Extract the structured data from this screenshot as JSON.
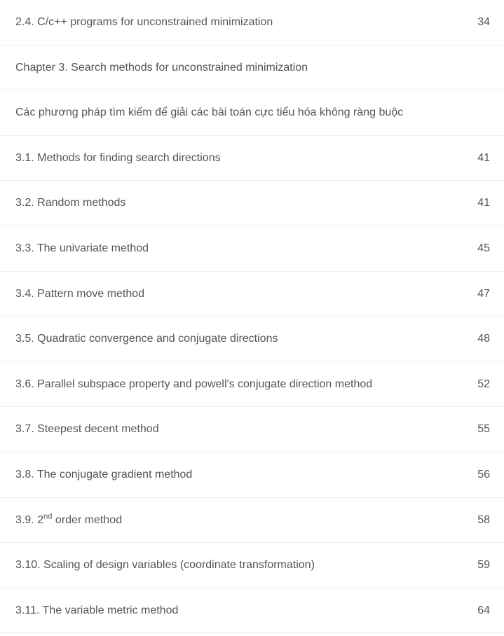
{
  "colors": {
    "text": "#555555",
    "border": "#eeeeee",
    "background": "#ffffff"
  },
  "typography": {
    "font_family": "Arial, Helvetica, sans-serif",
    "font_size_pt": 12,
    "line_height": 1.6
  },
  "toc": {
    "rows": [
      {
        "title": "2.4. C/c++ programs for unconstrained minimization",
        "page": "34"
      },
      {
        "title": "Chapter 3. Search methods for unconstrained minimization",
        "page": ""
      },
      {
        "title": " Các phương pháp tìm kiếm để giải các bài toán cực tiểu hóa không ràng buộc",
        "page": ""
      },
      {
        "title": "3.1. Methods for finding search directions",
        "page": "41"
      },
      {
        "title": "3.2. Random methods",
        "page": "41"
      },
      {
        "title": "3.3. The univariate method",
        "page": "45"
      },
      {
        "title": "3.4. Pattern move method",
        "page": "47"
      },
      {
        "title": "3.5. Quadratic convergence and conjugate directions",
        "page": "48"
      },
      {
        "title": "3.6. Parallel subspace property and powell's conjugate direction method",
        "page": "52"
      },
      {
        "title": "3.7. Steepest decent method",
        "page": "55"
      },
      {
        "title": "3.8. The conjugate gradient method",
        "page": "56"
      },
      {
        "title_html": "3.9. 2<sup>nd</sup> order method",
        "title": "3.9. 2nd order method",
        "page": "58"
      },
      {
        "title": "3.10. Scaling of design variables (coordinate transformation)",
        "page": "59"
      },
      {
        "title": "3.11. The variable metric method",
        "page": "64"
      }
    ]
  }
}
